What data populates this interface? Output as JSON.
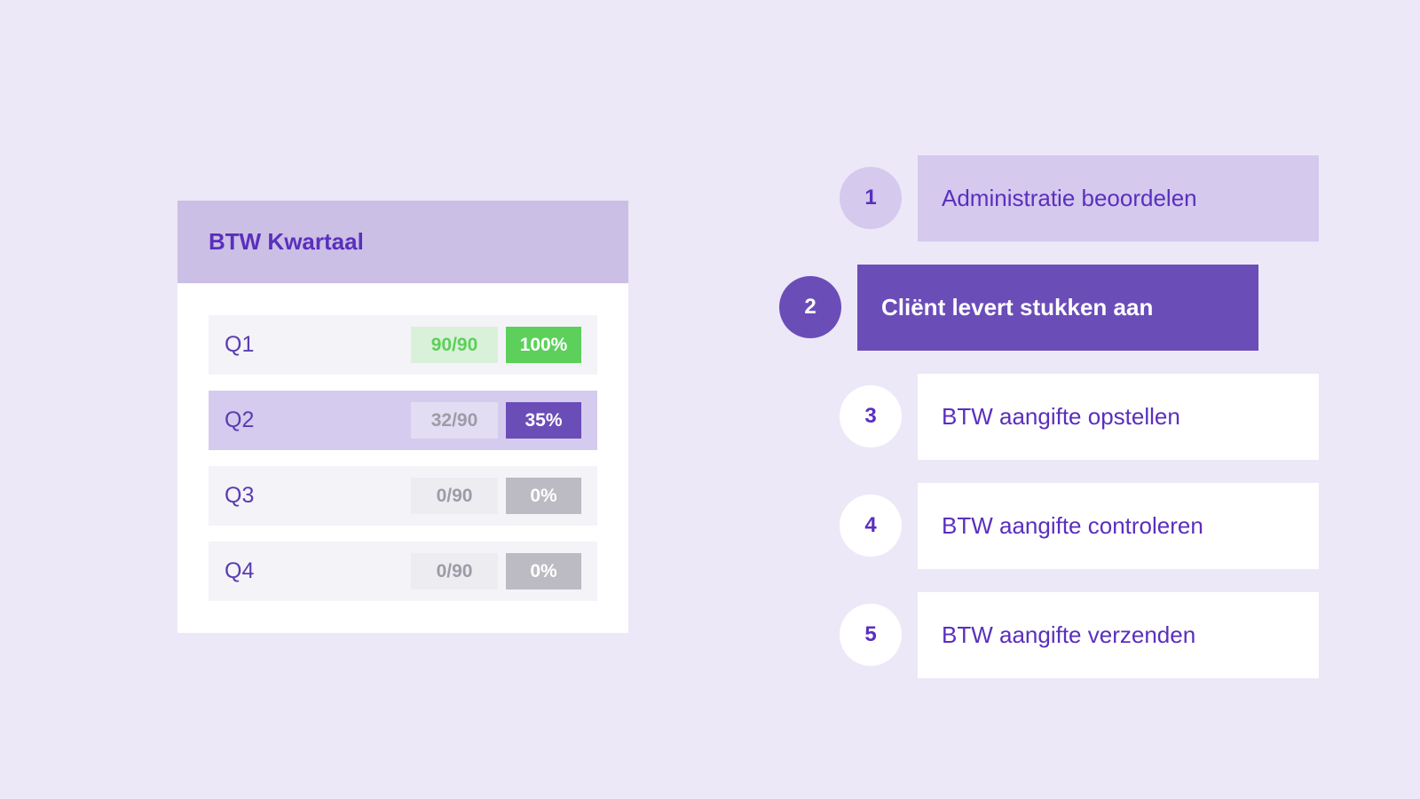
{
  "card": {
    "title": "BTW Kwartaal",
    "quarters": [
      {
        "label": "Q1",
        "count": "90/90",
        "percent": "100%",
        "progress": 1.0,
        "status": "complete"
      },
      {
        "label": "Q2",
        "count": "32/90",
        "percent": "35%",
        "progress": 0.35,
        "status": "active"
      },
      {
        "label": "Q3",
        "count": "0/90",
        "percent": "0%",
        "progress": 0.0,
        "status": "pending"
      },
      {
        "label": "Q4",
        "count": "0/90",
        "percent": "0%",
        "progress": 0.0,
        "status": "pending"
      }
    ]
  },
  "steps": [
    {
      "number": "1",
      "label": "Administratie beoordelen",
      "state": "done"
    },
    {
      "number": "2",
      "label": "Cliënt levert stukken aan",
      "state": "current"
    },
    {
      "number": "3",
      "label": "BTW aangifte opstellen",
      "state": "todo"
    },
    {
      "number": "4",
      "label": "BTW aangifte controleren",
      "state": "todo"
    },
    {
      "number": "5",
      "label": "BTW aangifte verzenden",
      "state": "todo"
    }
  ],
  "colors": {
    "background": "#ece8f7",
    "accent": "#6b4db8",
    "accent_text": "#5a2fbd",
    "light_purple": "#d5c9ee",
    "success": "#5cd05a",
    "success_light": "#d9f1d9",
    "neutral": "#bcbbc3",
    "neutral_light": "#ececf1"
  }
}
